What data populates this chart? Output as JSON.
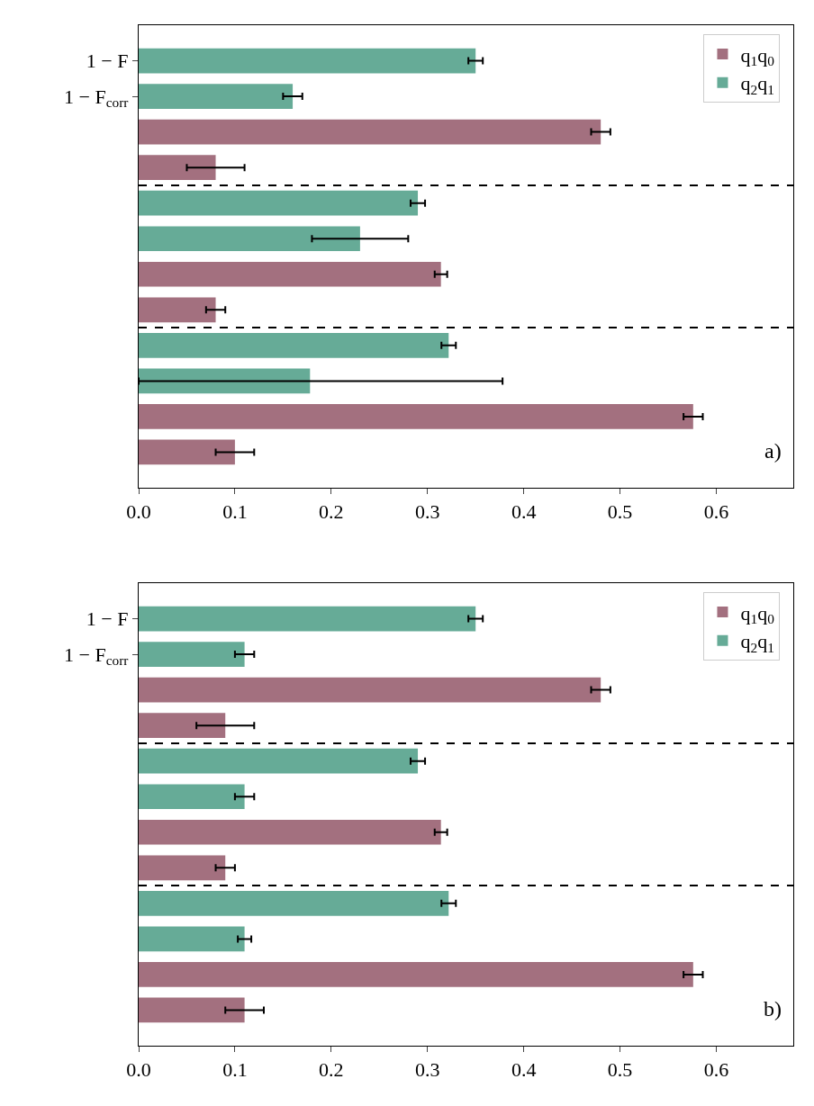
{
  "chart_data": [
    {
      "type": "bar",
      "orientation": "horizontal",
      "categories": [
        "1 − F",
        "1 − F$_{corr}$",
        null,
        null,
        null,
        null,
        null,
        null,
        null,
        null,
        null,
        null
      ],
      "series": [
        {
          "name": "q$_{1}$q$_{0}$",
          "color": "#a3707f",
          "values": [
            null,
            null,
            0.48,
            0.08,
            null,
            null,
            0.314,
            0.08,
            null,
            null,
            0.576,
            0.1
          ],
          "errors": [
            null,
            null,
            0.01,
            0.03,
            null,
            null,
            0.0065,
            0.01,
            null,
            null,
            0.01,
            0.02
          ]
        },
        {
          "name": "q$_{2}$q$_{1}$",
          "color": "#66ab97",
          "values": [
            0.35,
            0.16,
            null,
            null,
            0.29,
            0.23,
            null,
            null,
            0.322,
            0.178,
            null,
            null
          ],
          "errors": [
            0.0075,
            0.01,
            null,
            null,
            0.0075,
            0.05,
            null,
            null,
            0.0075,
            [
              0,
              0.378
            ],
            null,
            null
          ]
        }
      ],
      "xlim": [
        0,
        0.68
      ],
      "xticks": [
        {
          "value": 0,
          "label": "0.0"
        },
        0.1,
        0.2,
        0.3,
        0.4,
        0.5,
        0.6
      ],
      "annotations": [
        "a)"
      ],
      "legend": "top right",
      "grid": false
    },
    {
      "type": "bar",
      "orientation": "horizontal",
      "categories": [
        "1 − F",
        "1 − F$_{corr}$",
        null,
        null,
        null,
        null,
        null,
        null,
        null,
        null,
        null,
        null
      ],
      "series": [
        {
          "name": "q$_{1}$q$_{0}$",
          "color": "#a3707f",
          "values": [
            null,
            null,
            0.48,
            0.09,
            null,
            null,
            0.314,
            0.09,
            null,
            null,
            0.576,
            0.11
          ],
          "errors": [
            null,
            null,
            0.01,
            0.03,
            null,
            null,
            0.0065,
            0.01,
            null,
            null,
            0.01,
            0.02
          ]
        },
        {
          "name": "q$_{2}$q$_{1}$",
          "color": "#66ab97",
          "values": [
            0.35,
            0.11,
            null,
            null,
            0.29,
            0.11,
            null,
            null,
            0.322,
            0.11,
            null,
            null
          ],
          "errors": [
            0.0075,
            0.01,
            null,
            null,
            0.0075,
            0.01,
            null,
            null,
            0.0075,
            0.007,
            null,
            null
          ]
        }
      ],
      "xlim": [
        0,
        0.68
      ],
      "xticks": [
        {
          "value": 0,
          "label": "0.0"
        },
        0.1,
        0.2,
        0.3,
        0.4,
        0.5,
        0.6
      ],
      "annotations": [
        "b)"
      ],
      "legend": "top right",
      "grid": false
    }
  ]
}
